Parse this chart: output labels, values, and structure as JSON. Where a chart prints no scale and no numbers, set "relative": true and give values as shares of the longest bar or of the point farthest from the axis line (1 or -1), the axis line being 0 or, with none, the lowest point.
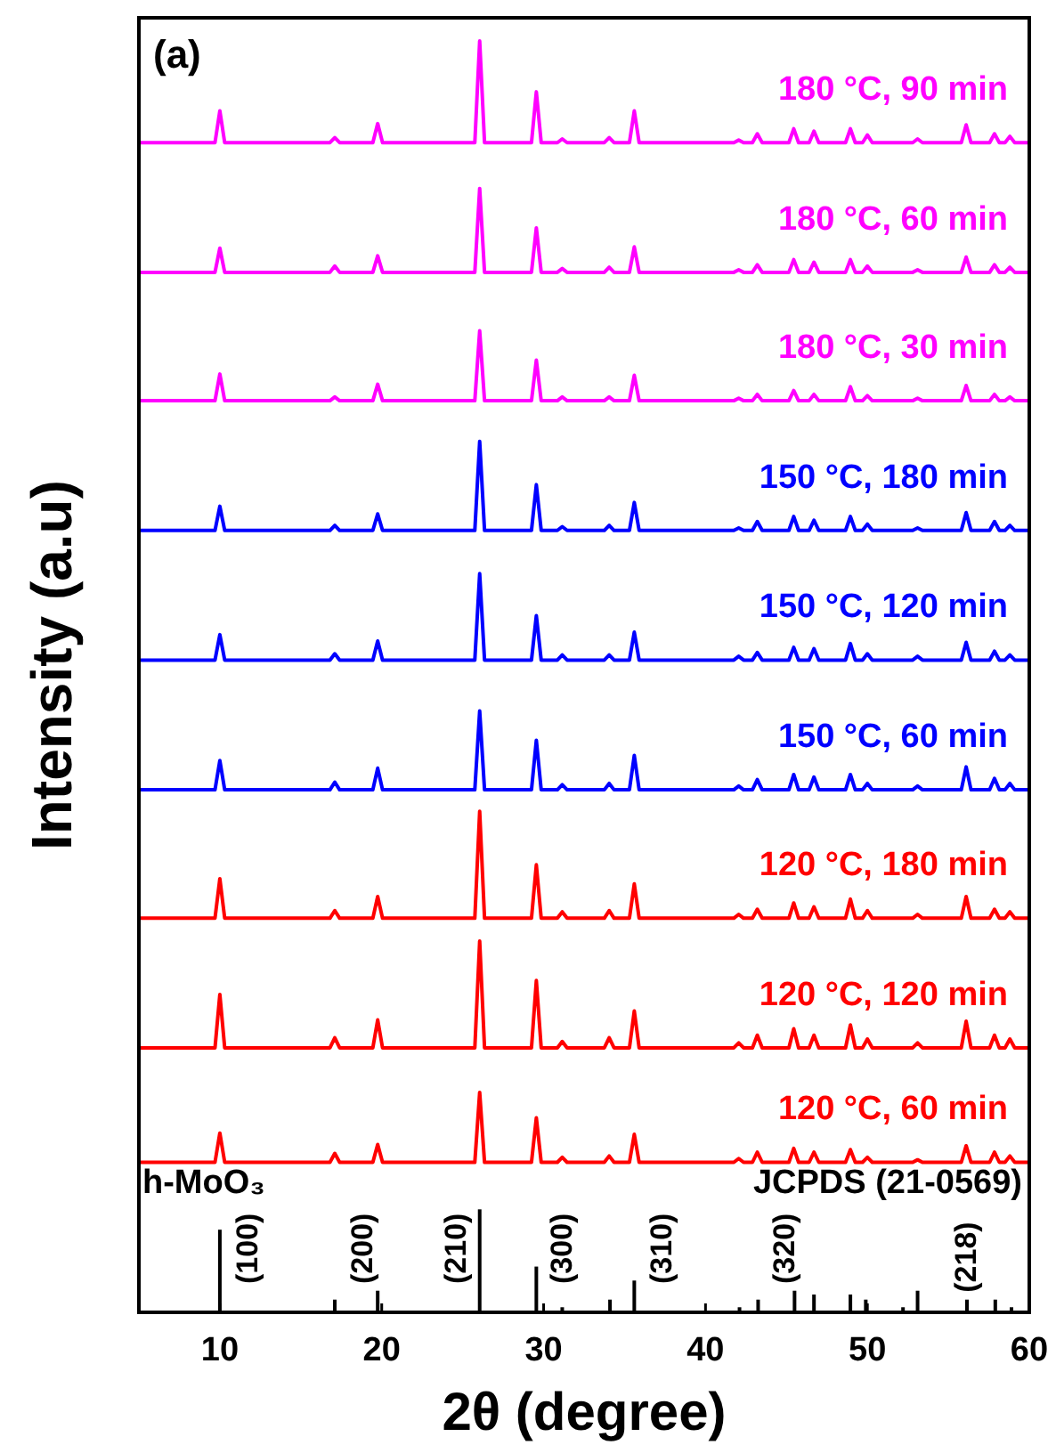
{
  "chart_data": {
    "type": "line",
    "relative": true,
    "xlabel": "2θ (degree)",
    "ylabel": "Intensity (a.u)",
    "xlim": [
      5,
      60
    ],
    "xticks": [
      10,
      20,
      30,
      40,
      50,
      60
    ],
    "x": [
      5,
      9.7,
      10.0,
      10.3,
      16.8,
      17.1,
      17.4,
      19.45,
      19.75,
      20.05,
      25.75,
      26.05,
      26.35,
      29.25,
      29.55,
      29.85,
      30.85,
      31.15,
      31.45,
      33.75,
      34.05,
      34.35,
      35.3,
      35.6,
      35.9,
      41.75,
      42.05,
      42.35,
      42.9,
      43.2,
      43.5,
      45.15,
      45.45,
      45.75,
      46.4,
      46.7,
      47.0,
      48.65,
      48.95,
      49.25,
      49.7,
      50.0,
      50.3,
      52.8,
      53.1,
      53.4,
      55.8,
      56.1,
      56.4,
      57.55,
      57.85,
      58.15,
      58.5,
      58.8,
      59.1,
      60
    ],
    "series": [
      {
        "name": "180 °C, 90 min",
        "color": "#ff00ff",
        "values": [
          0.92,
          0.92,
          0.945,
          0.92,
          0.92,
          0.924,
          0.92,
          0.92,
          0.935,
          0.92,
          0.92,
          1.0,
          0.92,
          0.92,
          0.96,
          0.92,
          0.92,
          0.923,
          0.92,
          0.92,
          0.924,
          0.92,
          0.92,
          0.945,
          0.92,
          0.92,
          0.922,
          0.92,
          0.92,
          0.927,
          0.92,
          0.92,
          0.931,
          0.92,
          0.92,
          0.929,
          0.92,
          0.92,
          0.931,
          0.92,
          0.92,
          0.926,
          0.92,
          0.92,
          0.923,
          0.92,
          0.92,
          0.934,
          0.92,
          0.92,
          0.927,
          0.92,
          0.92,
          0.925,
          0.92,
          0.92
        ]
      },
      {
        "name": "180 °C, 60 min",
        "color": "#ff00ff",
        "values": [
          0.818,
          0.818,
          0.837,
          0.818,
          0.818,
          0.823,
          0.818,
          0.818,
          0.831,
          0.818,
          0.818,
          0.884,
          0.818,
          0.818,
          0.853,
          0.818,
          0.818,
          0.821,
          0.818,
          0.818,
          0.822,
          0.818,
          0.818,
          0.838,
          0.818,
          0.818,
          0.82,
          0.818,
          0.818,
          0.824,
          0.818,
          0.818,
          0.828,
          0.818,
          0.818,
          0.826,
          0.818,
          0.818,
          0.828,
          0.818,
          0.818,
          0.823,
          0.818,
          0.818,
          0.82,
          0.818,
          0.818,
          0.83,
          0.818,
          0.818,
          0.824,
          0.818,
          0.818,
          0.822,
          0.818,
          0.818
        ]
      },
      {
        "name": "180 °C, 30 min",
        "color": "#ff00ff",
        "values": [
          0.717,
          0.717,
          0.738,
          0.717,
          0.717,
          0.72,
          0.717,
          0.717,
          0.73,
          0.717,
          0.717,
          0.772,
          0.717,
          0.717,
          0.749,
          0.717,
          0.717,
          0.72,
          0.717,
          0.717,
          0.72,
          0.717,
          0.717,
          0.737,
          0.717,
          0.717,
          0.719,
          0.717,
          0.717,
          0.722,
          0.717,
          0.717,
          0.725,
          0.717,
          0.717,
          0.722,
          0.717,
          0.717,
          0.728,
          0.717,
          0.717,
          0.721,
          0.717,
          0.717,
          0.719,
          0.717,
          0.717,
          0.729,
          0.717,
          0.717,
          0.722,
          0.717,
          0.717,
          0.72,
          0.717,
          0.717
        ]
      },
      {
        "name": "150 °C, 180 min",
        "color": "#0000ff",
        "values": [
          0.615,
          0.615,
          0.634,
          0.615,
          0.615,
          0.619,
          0.615,
          0.615,
          0.628,
          0.615,
          0.615,
          0.685,
          0.615,
          0.615,
          0.651,
          0.615,
          0.615,
          0.618,
          0.615,
          0.615,
          0.619,
          0.615,
          0.615,
          0.637,
          0.615,
          0.615,
          0.617,
          0.615,
          0.615,
          0.622,
          0.615,
          0.615,
          0.626,
          0.615,
          0.615,
          0.623,
          0.615,
          0.615,
          0.626,
          0.615,
          0.615,
          0.62,
          0.615,
          0.615,
          0.617,
          0.615,
          0.615,
          0.629,
          0.615,
          0.615,
          0.622,
          0.615,
          0.615,
          0.619,
          0.615,
          0.615
        ]
      },
      {
        "name": "150 °C, 120 min",
        "color": "#0000ff",
        "values": [
          0.513,
          0.513,
          0.533,
          0.513,
          0.513,
          0.518,
          0.513,
          0.513,
          0.528,
          0.513,
          0.513,
          0.581,
          0.513,
          0.513,
          0.548,
          0.513,
          0.513,
          0.517,
          0.513,
          0.513,
          0.517,
          0.513,
          0.513,
          0.535,
          0.513,
          0.513,
          0.516,
          0.513,
          0.513,
          0.519,
          0.513,
          0.513,
          0.523,
          0.513,
          0.513,
          0.522,
          0.513,
          0.513,
          0.526,
          0.513,
          0.513,
          0.518,
          0.513,
          0.513,
          0.516,
          0.513,
          0.513,
          0.527,
          0.513,
          0.513,
          0.52,
          0.513,
          0.513,
          0.517,
          0.513,
          0.513
        ]
      },
      {
        "name": "150 °C, 60 min",
        "color": "#0000ff",
        "values": [
          0.411,
          0.411,
          0.434,
          0.411,
          0.411,
          0.417,
          0.411,
          0.411,
          0.428,
          0.411,
          0.411,
          0.473,
          0.411,
          0.411,
          0.45,
          0.411,
          0.411,
          0.415,
          0.411,
          0.411,
          0.416,
          0.411,
          0.411,
          0.438,
          0.411,
          0.411,
          0.414,
          0.411,
          0.411,
          0.419,
          0.411,
          0.411,
          0.423,
          0.411,
          0.411,
          0.421,
          0.411,
          0.411,
          0.423,
          0.411,
          0.411,
          0.416,
          0.411,
          0.411,
          0.414,
          0.411,
          0.411,
          0.429,
          0.411,
          0.411,
          0.42,
          0.411,
          0.411,
          0.416,
          0.411,
          0.411
        ]
      },
      {
        "name": "120 °C, 180 min",
        "color": "#ff0000",
        "values": [
          0.31,
          0.31,
          0.341,
          0.31,
          0.31,
          0.316,
          0.31,
          0.31,
          0.327,
          0.31,
          0.31,
          0.394,
          0.31,
          0.31,
          0.352,
          0.31,
          0.31,
          0.315,
          0.31,
          0.31,
          0.316,
          0.31,
          0.31,
          0.337,
          0.31,
          0.31,
          0.313,
          0.31,
          0.31,
          0.317,
          0.31,
          0.31,
          0.322,
          0.31,
          0.31,
          0.319,
          0.31,
          0.31,
          0.325,
          0.31,
          0.31,
          0.316,
          0.31,
          0.31,
          0.313,
          0.31,
          0.31,
          0.327,
          0.31,
          0.31,
          0.317,
          0.31,
          0.31,
          0.315,
          0.31,
          0.31
        ]
      },
      {
        "name": "120 °C, 120 min",
        "color": "#ff0000",
        "values": [
          0.208,
          0.208,
          0.25,
          0.208,
          0.208,
          0.216,
          0.208,
          0.208,
          0.23,
          0.208,
          0.208,
          0.292,
          0.208,
          0.208,
          0.261,
          0.208,
          0.208,
          0.213,
          0.208,
          0.208,
          0.216,
          0.208,
          0.208,
          0.237,
          0.208,
          0.208,
          0.212,
          0.208,
          0.208,
          0.218,
          0.208,
          0.208,
          0.223,
          0.208,
          0.208,
          0.218,
          0.208,
          0.208,
          0.226,
          0.208,
          0.208,
          0.215,
          0.208,
          0.208,
          0.212,
          0.208,
          0.208,
          0.229,
          0.208,
          0.208,
          0.218,
          0.208,
          0.208,
          0.215,
          0.208,
          0.208
        ]
      },
      {
        "name": "120 °C, 60 min",
        "color": "#ff0000",
        "values": [
          0.118,
          0.118,
          0.141,
          0.118,
          0.118,
          0.125,
          0.118,
          0.118,
          0.132,
          0.118,
          0.118,
          0.173,
          0.118,
          0.118,
          0.153,
          0.118,
          0.118,
          0.122,
          0.118,
          0.118,
          0.123,
          0.118,
          0.118,
          0.14,
          0.118,
          0.118,
          0.121,
          0.118,
          0.118,
          0.126,
          0.118,
          0.118,
          0.129,
          0.118,
          0.118,
          0.126,
          0.118,
          0.118,
          0.128,
          0.118,
          0.118,
          0.122,
          0.118,
          0.118,
          0.12,
          0.118,
          0.118,
          0.131,
          0.118,
          0.118,
          0.126,
          0.118,
          0.118,
          0.123,
          0.118,
          0.118
        ]
      },
      {
        "type": "bar",
        "color": "#000000",
        "x": [
          10.0,
          17.1,
          19.75,
          26.05,
          29.55,
          31.15,
          34.1,
          35.6,
          42.1,
          43.25,
          45.5,
          46.7,
          48.95,
          49.9,
          52.2,
          53.1,
          56.15,
          57.9,
          58.9
        ],
        "values": [
          0.065,
          0.01,
          0.017,
          0.081,
          0.036,
          0.004,
          0.01,
          0.025,
          0.004,
          0.01,
          0.017,
          0.014,
          0.014,
          0.01,
          0.004,
          0.017,
          0.01,
          0.01,
          0.004
        ]
      }
    ],
    "annotations": [
      "(a)",
      "h-MoO₃",
      "JCPDS (21-0569)",
      {
        "text": "(100)",
        "x": 10.0,
        "y": 0.065
      },
      {
        "text": "(200)",
        "x": 19.75,
        "y": 0.017
      },
      {
        "text": "(210)",
        "x": 26.05,
        "y": 0.081
      },
      {
        "text": "(300)",
        "x": 29.55,
        "y": 0.036
      },
      {
        "text": "(310)",
        "x": 35.6,
        "y": 0.025
      },
      {
        "text": "(320)",
        "x": 45.5,
        "y": 0.017
      },
      {
        "text": "(218)",
        "x": 56.15,
        "y": 0.01
      }
    ]
  }
}
